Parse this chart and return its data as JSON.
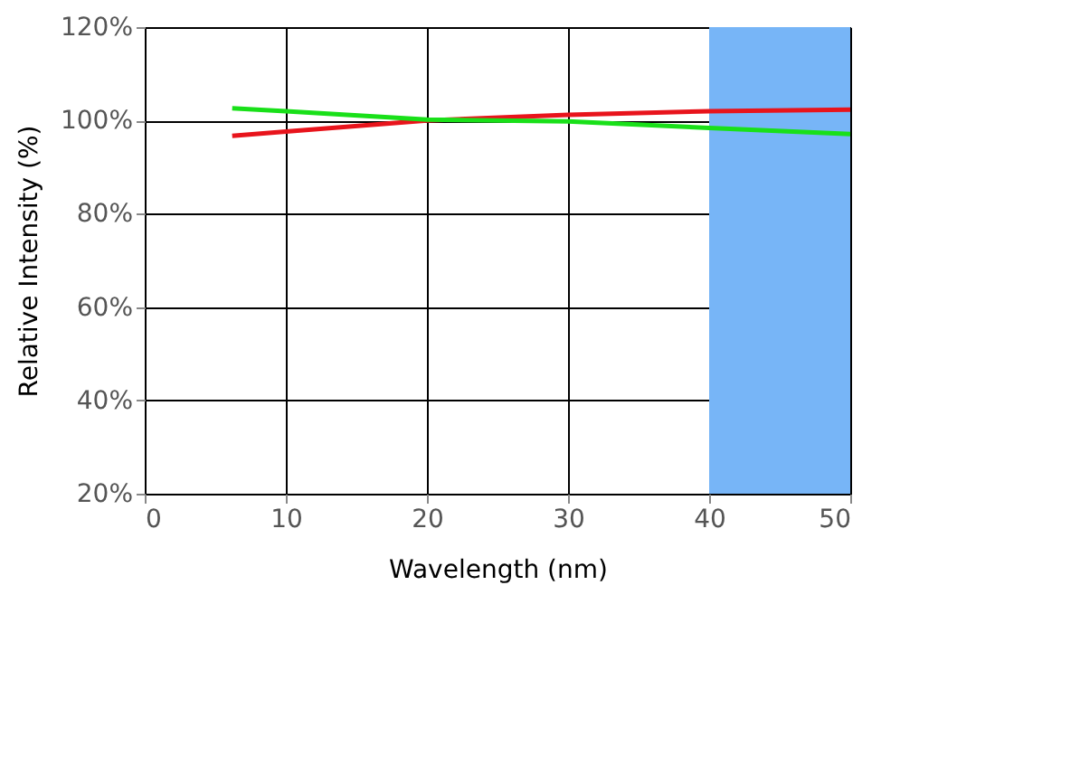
{
  "chart_data": {
    "type": "line",
    "xlabel": "Wavelength (nm)",
    "ylabel": "Relative Intensity (%)",
    "xlim": [
      0,
      50
    ],
    "xticks": [
      0,
      10,
      20,
      30,
      40,
      50
    ],
    "ylim": [
      20,
      120
    ],
    "yticks": [
      {
        "value": 20,
        "label": "20%"
      },
      {
        "value": 40,
        "label": "40%"
      },
      {
        "value": 60,
        "label": "60%"
      },
      {
        "value": 80,
        "label": "80%"
      },
      {
        "value": 100,
        "label": "100%"
      },
      {
        "value": 120,
        "label": "120%"
      }
    ],
    "grid": true,
    "marker": "none",
    "line_style": "solid",
    "bands": [
      {
        "axis": "x",
        "from": 40,
        "to": 50,
        "color": "#77b5f7"
      }
    ],
    "series": [
      {
        "color": "#e8141c",
        "x": [
          6.2,
          10,
          20,
          30,
          40,
          50
        ],
        "values": [
          96.7,
          97.6,
          100,
          101.2,
          102,
          102.3
        ]
      },
      {
        "color": "#19e019",
        "x": [
          6.2,
          10,
          20,
          30,
          40,
          50
        ],
        "values": [
          102.6,
          102,
          100.2,
          99.8,
          98.4,
          97.1
        ]
      }
    ]
  }
}
